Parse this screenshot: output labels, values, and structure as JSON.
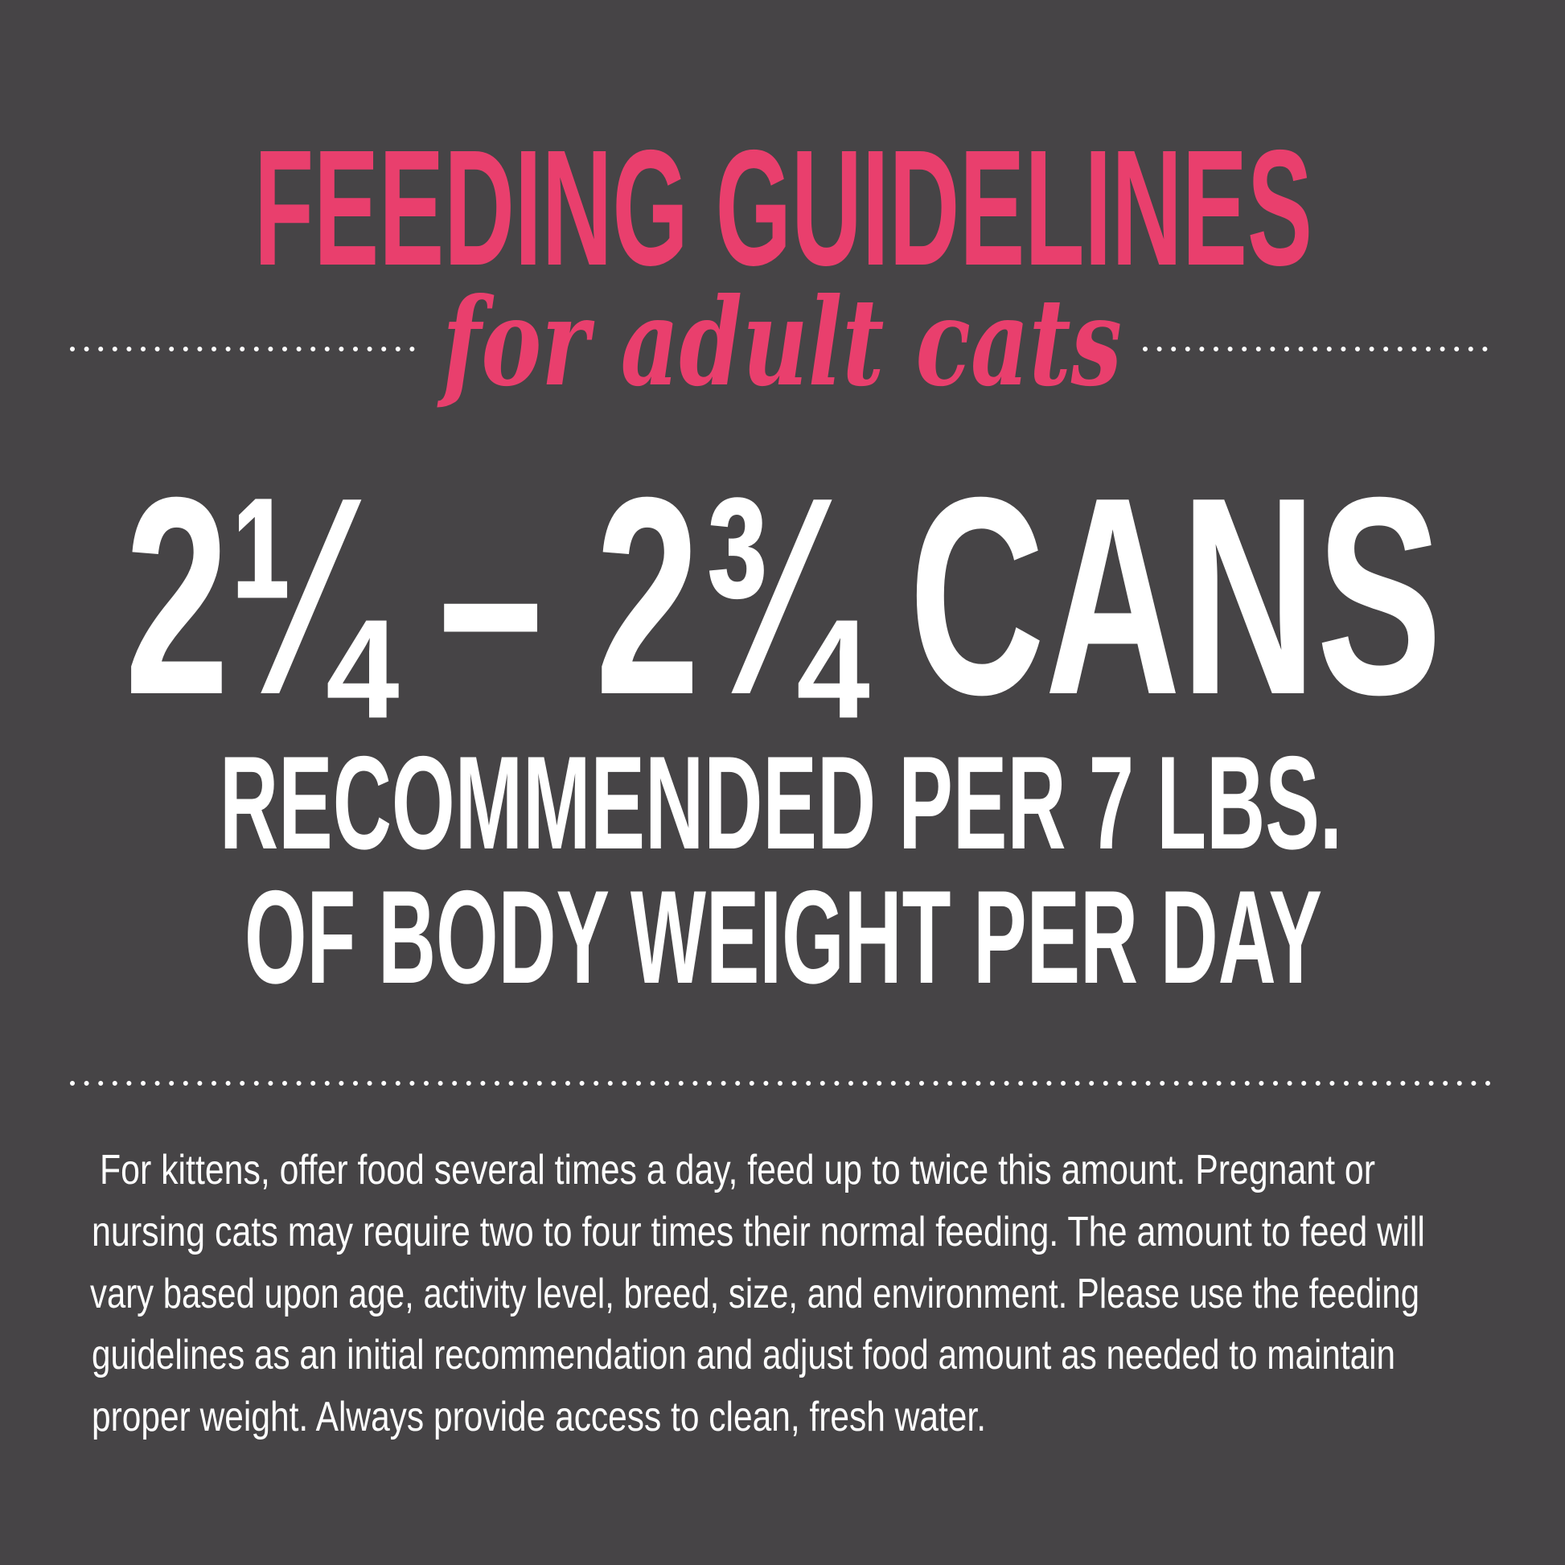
{
  "colors": {
    "background": "#464446",
    "accent": "#e93f6d",
    "text": "#ffffff"
  },
  "header": {
    "title": "FEEDING GUIDELINES",
    "subtitle": "for adult cats"
  },
  "main": {
    "amount": "2¼ – 2¾ CANS",
    "line1": "RECOMMENDED PER 7 LBS.",
    "line2": "OF BODY WEIGHT PER DAY"
  },
  "note": {
    "lines": [
      "For kittens, offer food several times a day, feed up to twice this amount.  Pregnant or",
      "nursing cats may require two to four times their normal feeding.  The amount to feed will",
      "vary based upon age, activity level, breed, size, and environment.  Please use the feeding",
      "guidelines as an initial recommendation and adjust food amount as needed to maintain",
      "proper weight.  Always provide access to clean, fresh water."
    ]
  }
}
